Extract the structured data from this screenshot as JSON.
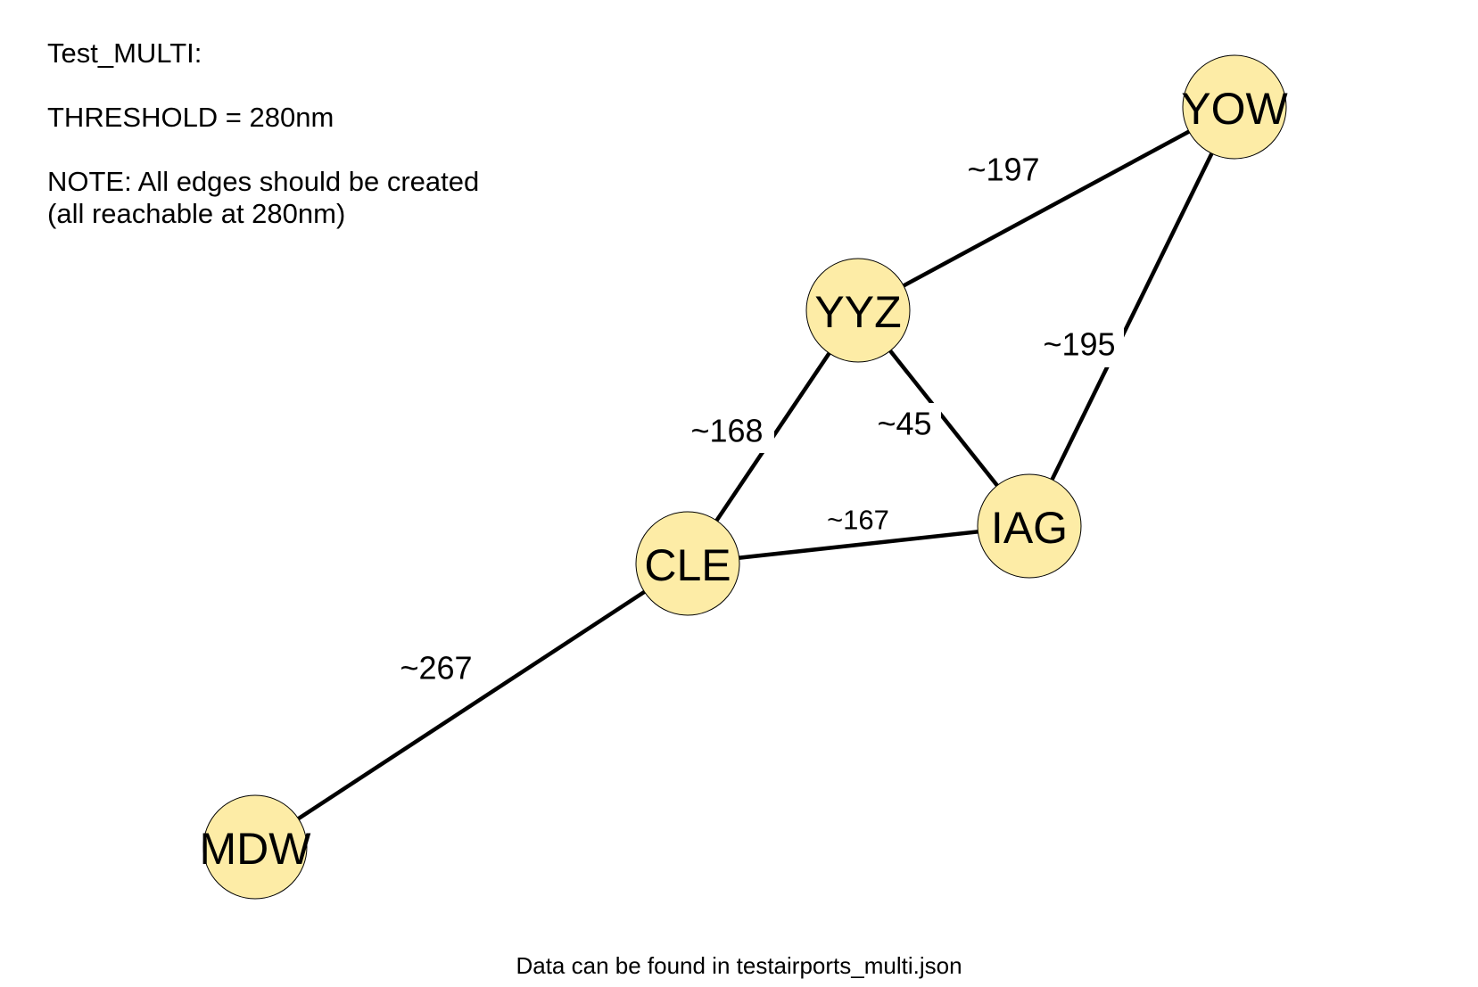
{
  "notes": {
    "title": "Test_MULTI:",
    "threshold": "THRESHOLD = 280nm",
    "note_line1": "NOTE: All edges should be created",
    "note_line2": "(all reachable at 280nm)"
  },
  "graph": {
    "nodes": [
      {
        "id": "YOW",
        "label": "YOW"
      },
      {
        "id": "YYZ",
        "label": "YYZ"
      },
      {
        "id": "IAG",
        "label": "IAG"
      },
      {
        "id": "CLE",
        "label": "CLE"
      },
      {
        "id": "MDW",
        "label": "MDW"
      }
    ],
    "edges": [
      {
        "from": "YYZ",
        "to": "YOW",
        "label": "~197"
      },
      {
        "from": "IAG",
        "to": "YOW",
        "label": "~195"
      },
      {
        "from": "YYZ",
        "to": "CLE",
        "label": "~168"
      },
      {
        "from": "YYZ",
        "to": "IAG",
        "label": "~45"
      },
      {
        "from": "CLE",
        "to": "IAG",
        "label": "~167"
      },
      {
        "from": "MDW",
        "to": "CLE",
        "label": "~267"
      }
    ],
    "node_fill": "#fdeca6",
    "edge_color": "#000000"
  },
  "footer": {
    "text": "Data can be found in testairports_multi.json"
  }
}
